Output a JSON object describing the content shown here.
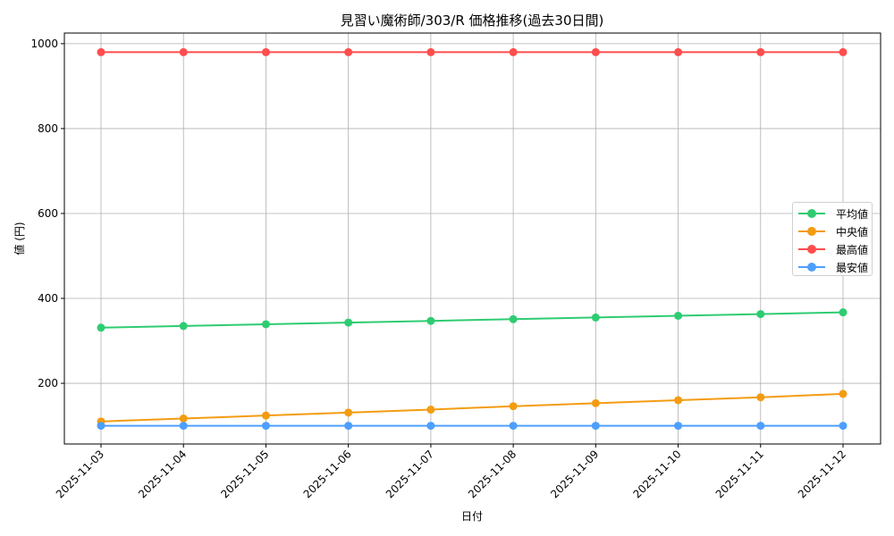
{
  "chart_data": {
    "type": "line",
    "title": "見習い魔術師/303/R 価格推移(過去30日間)",
    "xlabel": "日付",
    "ylabel": "値 (円)",
    "categories": [
      "2025-11-03",
      "2025-11-04",
      "2025-11-05",
      "2025-11-06",
      "2025-11-07",
      "2025-11-08",
      "2025-11-09",
      "2025-11-10",
      "2025-11-11",
      "2025-11-12"
    ],
    "series": [
      {
        "name": "平均値",
        "color": "#2ecc71",
        "values": [
          331,
          335,
          339,
          343,
          347,
          351,
          355,
          359,
          363,
          367
        ]
      },
      {
        "name": "中央値",
        "color": "#f39c12",
        "values": [
          110,
          117,
          124,
          131,
          138,
          146,
          153,
          160,
          167,
          175
        ]
      },
      {
        "name": "最高値",
        "color": "#ff4d4d",
        "values": [
          980,
          980,
          980,
          980,
          980,
          980,
          980,
          980,
          980,
          980
        ]
      },
      {
        "name": "最安値",
        "color": "#4d9fff",
        "values": [
          100,
          100,
          100,
          100,
          100,
          100,
          100,
          100,
          100,
          100
        ]
      }
    ],
    "yticks": [
      200,
      400,
      600,
      800,
      1000
    ],
    "ylim": [
      57,
      1025
    ],
    "grid": true,
    "legend_position": "center right"
  }
}
